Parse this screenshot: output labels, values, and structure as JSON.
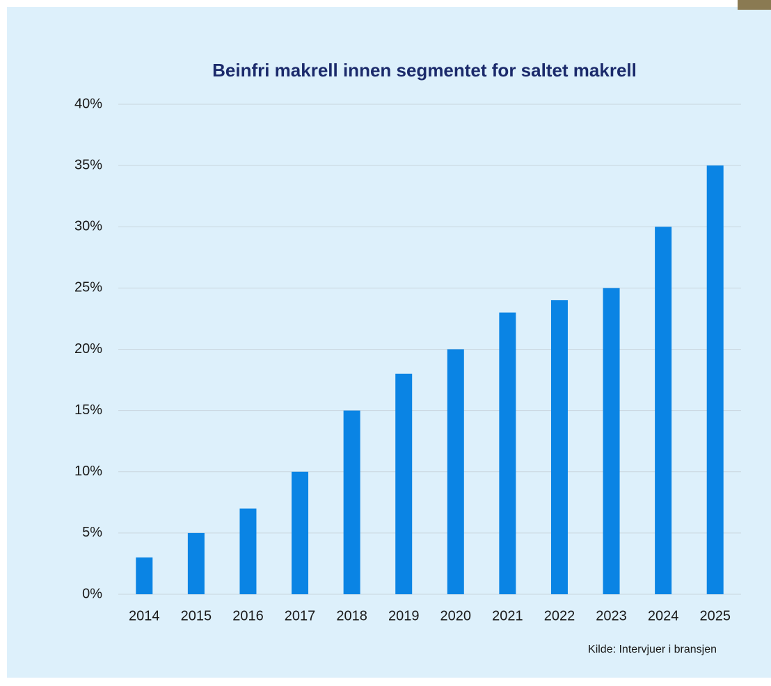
{
  "chart_data": {
    "type": "bar",
    "title": "Beinfri makrell innen segmentet for saltet makrell",
    "categories": [
      "2014",
      "2015",
      "2016",
      "2017",
      "2018",
      "2019",
      "2020",
      "2021",
      "2022",
      "2023",
      "2024",
      "2025"
    ],
    "values": [
      3,
      5,
      7,
      10,
      15,
      18,
      20,
      23,
      24,
      25,
      30,
      35
    ],
    "color": "#0a84e4",
    "ylim": [
      0,
      40
    ],
    "yticks": [
      {
        "value": 0,
        "label": "0%"
      },
      {
        "value": 5,
        "label": "5%"
      },
      {
        "value": 10,
        "label": "10%"
      },
      {
        "value": 15,
        "label": "15%"
      },
      {
        "value": 20,
        "label": "20%"
      },
      {
        "value": 25,
        "label": "25%"
      },
      {
        "value": 30,
        "label": "30%"
      },
      {
        "value": 35,
        "label": "35%"
      },
      {
        "value": 40,
        "label": "40%"
      }
    ],
    "grid": true,
    "source": "Kilde: Intervjuer i bransjen"
  }
}
